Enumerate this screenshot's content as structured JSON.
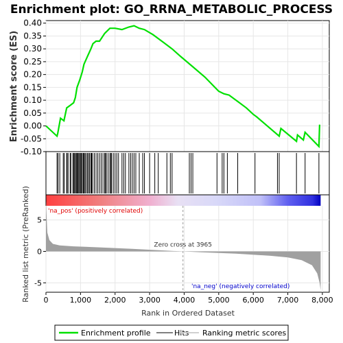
{
  "chart_data": {
    "type": "line",
    "title": "Enrichment plot: GO_RRNA_METABOLIC_PROCESS",
    "xlabel": "Rank in Ordered Dataset",
    "ylabel_top": "Enrichment score (ES)",
    "ylabel_bottom": "Ranked list metric (PreRanked)",
    "xlim": [
      0,
      8200
    ],
    "ylim_es": [
      -0.1,
      0.41
    ],
    "ylim_metric": [
      -6.5,
      9
    ],
    "x_ticks": [
      0,
      1000,
      2000,
      3000,
      4000,
      5000,
      6000,
      7000,
      8000
    ],
    "x_tick_labels": [
      "0",
      "1,000",
      "2,000",
      "3,000",
      "4,000",
      "5,000",
      "6,000",
      "7,000",
      "8,000"
    ],
    "es_ticks": [
      -0.1,
      -0.05,
      0.0,
      0.05,
      0.1,
      0.15,
      0.2,
      0.25,
      0.3,
      0.35,
      0.4
    ],
    "es_tick_labels": [
      "-0.10",
      "-0.05",
      "0.00",
      "0.05",
      "0.10",
      "0.15",
      "0.20",
      "0.25",
      "0.30",
      "0.35",
      "0.40"
    ],
    "metric_ticks": [
      -5,
      0,
      5
    ],
    "metric_tick_labels": [
      "-5",
      "0",
      "5"
    ],
    "zero_cross": 3965,
    "zero_cross_label": "Zero cross at 3965",
    "pos_label": "'na_pos' (positively correlated)",
    "neg_label": "'na_neg' (negatively correlated)",
    "n_genes": 7950,
    "legend": [
      "Enrichment profile",
      "Hits",
      "Ranking metric scores"
    ],
    "legend_placement": "bottom",
    "grid": true,
    "colors": {
      "profile": "#00e000",
      "hits": "#000000",
      "metric_fill": "#a0a0a0",
      "pos_heat": "#ff0000",
      "neg_heat": "#0000ff"
    },
    "es_profile": [
      [
        0,
        0.0
      ],
      [
        320,
        -0.04
      ],
      [
        340,
        -0.03
      ],
      [
        420,
        0.03
      ],
      [
        520,
        0.02
      ],
      [
        600,
        0.07
      ],
      [
        700,
        0.08
      ],
      [
        800,
        0.09
      ],
      [
        850,
        0.11
      ],
      [
        900,
        0.15
      ],
      [
        980,
        0.18
      ],
      [
        1050,
        0.21
      ],
      [
        1100,
        0.24
      ],
      [
        1200,
        0.27
      ],
      [
        1300,
        0.3
      ],
      [
        1360,
        0.32
      ],
      [
        1450,
        0.33
      ],
      [
        1550,
        0.33
      ],
      [
        1700,
        0.36
      ],
      [
        1850,
        0.38
      ],
      [
        2000,
        0.38
      ],
      [
        2200,
        0.375
      ],
      [
        2400,
        0.385
      ],
      [
        2550,
        0.39
      ],
      [
        2700,
        0.38
      ],
      [
        2850,
        0.375
      ],
      [
        3100,
        0.355
      ],
      [
        3400,
        0.325
      ],
      [
        3650,
        0.3
      ],
      [
        3900,
        0.27
      ],
      [
        4250,
        0.23
      ],
      [
        4600,
        0.19
      ],
      [
        5000,
        0.135
      ],
      [
        5150,
        0.125
      ],
      [
        5300,
        0.12
      ],
      [
        5600,
        0.09
      ],
      [
        5800,
        0.07
      ],
      [
        6000,
        0.045
      ],
      [
        6100,
        0.035
      ],
      [
        6750,
        -0.04
      ],
      [
        6800,
        -0.01
      ],
      [
        7250,
        -0.06
      ],
      [
        7280,
        -0.035
      ],
      [
        7450,
        -0.055
      ],
      [
        7500,
        -0.025
      ],
      [
        7900,
        -0.08
      ],
      [
        7920,
        0.005
      ]
    ],
    "hits": [
      320,
      350,
      400,
      500,
      530,
      600,
      610,
      640,
      700,
      720,
      780,
      800,
      830,
      850,
      880,
      900,
      920,
      950,
      970,
      1000,
      1020,
      1050,
      1080,
      1100,
      1130,
      1160,
      1200,
      1230,
      1260,
      1300,
      1320,
      1350,
      1400,
      1450,
      1500,
      1550,
      1600,
      1650,
      1700,
      1720,
      1750,
      1800,
      1850,
      1880,
      1900,
      1950,
      2000,
      2050,
      2100,
      2200,
      2250,
      2300,
      2400,
      2450,
      2500,
      2550,
      2600,
      2700,
      2800,
      2850,
      3000,
      3150,
      3250,
      3500,
      3600,
      3650,
      4150,
      4200,
      4250,
      4950,
      5100,
      5150,
      5250,
      5550,
      6050,
      6700,
      6750,
      7250,
      7500,
      7900
    ],
    "metric_curve": [
      [
        0,
        8.0
      ],
      [
        40,
        3.0
      ],
      [
        100,
        1.8
      ],
      [
        200,
        1.2
      ],
      [
        400,
        0.95
      ],
      [
        800,
        0.8
      ],
      [
        1500,
        0.65
      ],
      [
        2500,
        0.4
      ],
      [
        3500,
        0.12
      ],
      [
        3965,
        0.0
      ],
      [
        4500,
        -0.15
      ],
      [
        5500,
        -0.35
      ],
      [
        6500,
        -0.7
      ],
      [
        7000,
        -0.95
      ],
      [
        7400,
        -1.4
      ],
      [
        7700,
        -2.2
      ],
      [
        7850,
        -3.5
      ],
      [
        7920,
        -5.0
      ],
      [
        7950,
        -6.2
      ]
    ]
  }
}
